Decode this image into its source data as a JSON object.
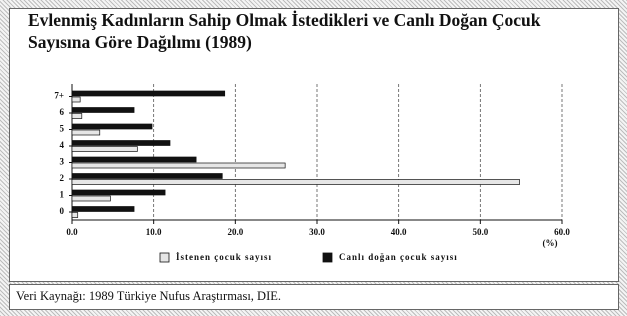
{
  "chart_data": {
    "type": "bar",
    "orientation": "horizontal",
    "title": "Evlenmiş Kadınların Sahip Olmak İstedikleri ve Canlı Doğan Çocuk Sayısına Göre Dağılımı (1989)",
    "categories": [
      "0",
      "1",
      "2",
      "3",
      "4",
      "5",
      "6",
      "7+"
    ],
    "series": [
      {
        "name": "İstenen çocuk sayısı",
        "color": "#e6e6e6",
        "values": [
          0.7,
          4.7,
          54.8,
          26.1,
          8.0,
          3.4,
          1.2,
          1.0
        ]
      },
      {
        "name": "Canlı doğan çocuk sayısı",
        "color": "#111111",
        "values": [
          7.6,
          11.4,
          18.4,
          15.2,
          12.0,
          9.8,
          7.6,
          18.7
        ]
      }
    ],
    "xlim": [
      0,
      60
    ],
    "xticks": [
      {
        "value": 0,
        "label": "0.0"
      },
      {
        "value": 10,
        "label": "10.0"
      },
      {
        "value": 20,
        "label": "20.0"
      },
      {
        "value": 30,
        "label": "30.0"
      },
      {
        "value": 40,
        "label": "40.0"
      },
      {
        "value": 50,
        "label": "50.0"
      },
      {
        "value": 60,
        "label": "60.0"
      }
    ],
    "x_unit": "(%)",
    "grid": true,
    "source": "Veri Kaynağı: 1989 Türkiye Nufus Araştırması, DIE."
  }
}
